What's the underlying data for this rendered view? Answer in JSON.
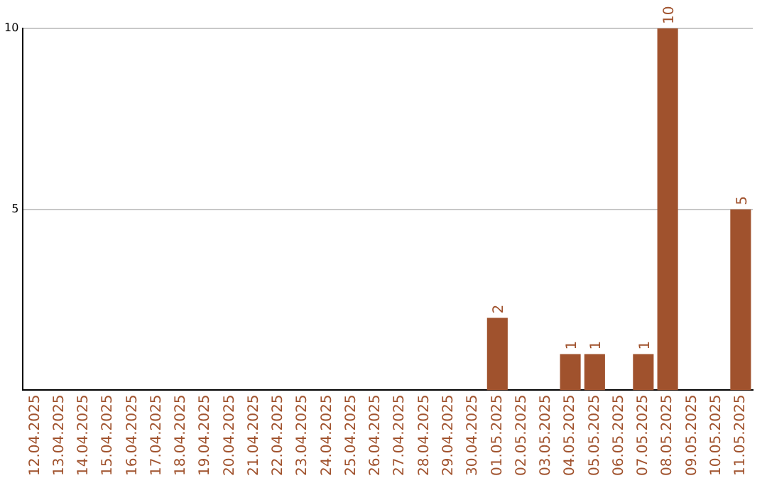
{
  "chart_data": {
    "type": "bar",
    "categories": [
      "12.04.2025",
      "13.04.2025",
      "14.04.2025",
      "15.04.2025",
      "16.04.2025",
      "17.04.2025",
      "18.04.2025",
      "19.04.2025",
      "20.04.2025",
      "21.04.2025",
      "22.04.2025",
      "23.04.2025",
      "24.04.2025",
      "25.04.2025",
      "26.04.2025",
      "27.04.2025",
      "28.04.2025",
      "29.04.2025",
      "30.04.2025",
      "01.05.2025",
      "02.05.2025",
      "03.05.2025",
      "04.05.2025",
      "05.05.2025",
      "06.05.2025",
      "07.05.2025",
      "08.05.2025",
      "09.05.2025",
      "10.05.2025",
      "11.05.2025"
    ],
    "values": [
      null,
      null,
      null,
      null,
      null,
      null,
      null,
      null,
      null,
      null,
      null,
      null,
      null,
      null,
      null,
      null,
      null,
      null,
      null,
      2,
      null,
      null,
      1,
      1,
      null,
      1,
      10,
      null,
      null,
      5
    ],
    "color": "#a0522d",
    "ylim": [
      0,
      10
    ],
    "yticks": [
      5,
      10
    ],
    "grid": "y",
    "data_labels": true
  }
}
